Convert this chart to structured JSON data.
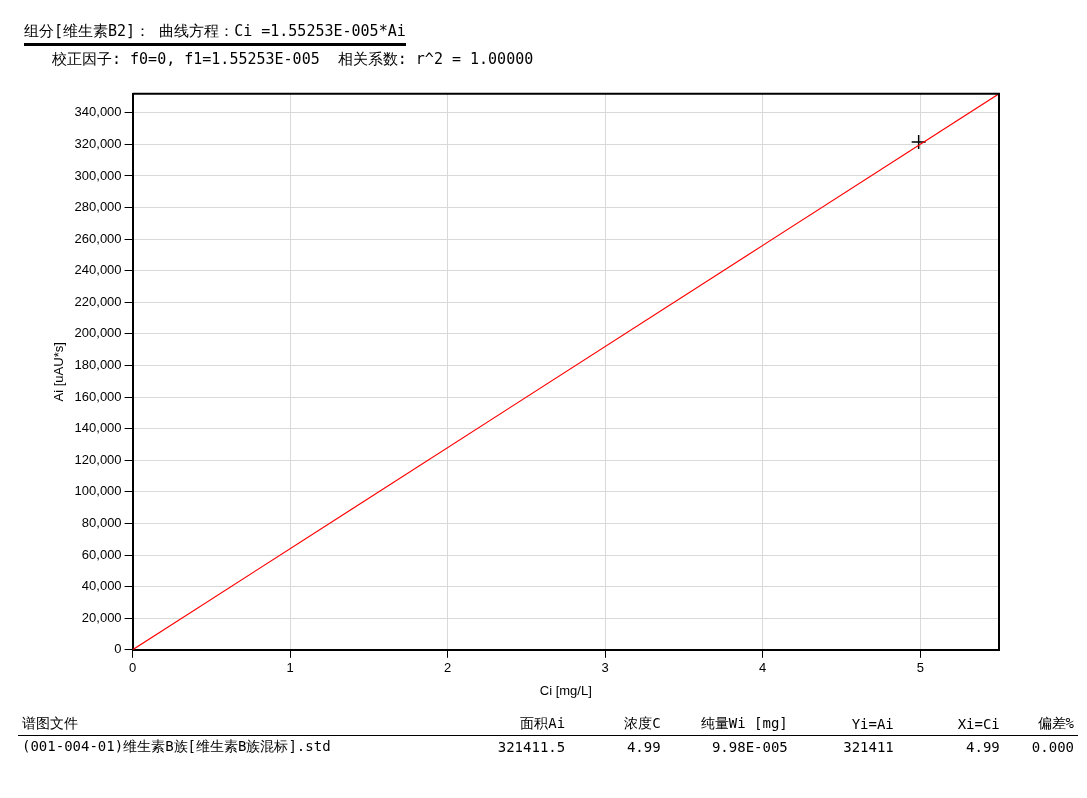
{
  "chart_data": {
    "type": "line",
    "title": "组分[维生素B2]：  曲线方程：Ci =1.55253E-005*Ai",
    "subtitle": "校正因子: f0=0, f1=1.55253E-005  相关系数: r^2 = 1.00000",
    "xlabel": "Ci [mg/L]",
    "ylabel": "Ai [uAU*s]",
    "series": [
      {
        "color": "#ff0000",
        "x": [
          0,
          5.5
        ],
        "values": [
          0,
          352000
        ],
        "marker": "none"
      },
      {
        "type": "scatter",
        "color": "#000000",
        "x": [
          4.99
        ],
        "values": [
          321411
        ],
        "marker": "cross"
      }
    ],
    "xlim": [
      0,
      5.5
    ],
    "xticks": [
      0,
      1,
      2,
      3,
      4,
      5
    ],
    "ylim": [
      0,
      352000
    ],
    "yticks": [
      0,
      {
        "value": 20000,
        "label": "20,000"
      },
      {
        "value": 40000,
        "label": "40,000"
      },
      {
        "value": 60000,
        "label": "60,000"
      },
      {
        "value": 80000,
        "label": "80,000"
      },
      {
        "value": 100000,
        "label": "100,000"
      },
      {
        "value": 120000,
        "label": "120,000"
      },
      {
        "value": 140000,
        "label": "140,000"
      },
      {
        "value": 160000,
        "label": "160,000"
      },
      {
        "value": 180000,
        "label": "180,000"
      },
      {
        "value": 200000,
        "label": "200,000"
      },
      {
        "value": 220000,
        "label": "220,000"
      },
      {
        "value": 240000,
        "label": "240,000"
      },
      {
        "value": 260000,
        "label": "260,000"
      },
      {
        "value": 280000,
        "label": "280,000"
      },
      {
        "value": 300000,
        "label": "300,000"
      },
      {
        "value": 320000,
        "label": "320,000"
      },
      {
        "value": 340000,
        "label": "340,000"
      }
    ],
    "grid": true,
    "legend": false,
    "annotations": [
      "谱图文件",
      "面积Ai",
      "浓度C",
      "纯量Wi [mg]",
      "Yi=Ai",
      "Xi=Ci",
      "偏差%",
      "(001-004-01)维生素B族[维生素B族混标].std",
      "321411.5",
      "4.99",
      "9.98E-005",
      "321411",
      "4.99",
      "0.000"
    ]
  }
}
